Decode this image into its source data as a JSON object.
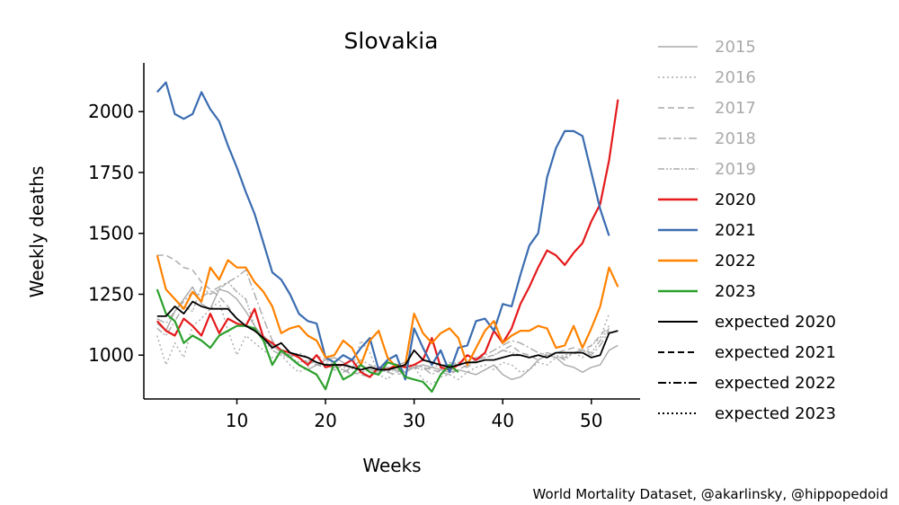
{
  "chart_data": {
    "type": "line",
    "title": "Slovakia",
    "xlabel": "Weeks",
    "ylabel": "Weekly deaths",
    "xlim": [
      -0.5,
      55.5
    ],
    "ylim": [
      820,
      2200
    ],
    "xticks": [
      10,
      20,
      30,
      40,
      50
    ],
    "yticks": [
      1000,
      1250,
      1500,
      1750,
      2000
    ],
    "grid": false,
    "legend_position": "right",
    "credit": "World Mortality Dataset, @akarlinsky, @hippopedoid",
    "series": [
      {
        "name": "2015",
        "color": "#aaaaaa",
        "dash": "solid",
        "width": 1.4,
        "start": 1,
        "values": [
          1130,
          1100,
          1180,
          1230,
          1280,
          1210,
          1190,
          1270,
          1260,
          1230,
          1180,
          1120,
          1070,
          1040,
          1010,
          990,
          960,
          940,
          960,
          980,
          990,
          970,
          950,
          960,
          940,
          930,
          950,
          940,
          930,
          950,
          960,
          950,
          940,
          930,
          940,
          930,
          920,
          940,
          960,
          920,
          900,
          910,
          940,
          980,
          1000,
          990,
          960,
          950,
          930,
          950,
          960,
          1020,
          1040
        ]
      },
      {
        "name": "2016",
        "color": "#aaaaaa",
        "dash": "dotted",
        "width": 1.4,
        "start": 1,
        "values": [
          1080,
          960,
          1050,
          990,
          1120,
          1150,
          1190,
          1220,
          1100,
          1000,
          1080,
          1050,
          1020,
          990,
          1000,
          960,
          930,
          950,
          1000,
          980,
          960,
          950,
          940,
          1060,
          1010,
          920,
          900,
          940,
          930,
          950,
          900,
          880,
          910,
          920,
          900,
          930,
          950,
          960,
          940,
          970,
          960,
          930,
          940,
          970,
          960,
          990,
          1000,
          1010,
          990,
          1040,
          1070,
          1170
        ]
      },
      {
        "name": "2017",
        "color": "#aaaaaa",
        "dash": "dashed",
        "width": 1.4,
        "start": 1,
        "values": [
          1410,
          1410,
          1390,
          1360,
          1350,
          1300,
          1270,
          1240,
          1200,
          1150,
          1120,
          1100,
          1080,
          1040,
          1020,
          1000,
          990,
          970,
          960,
          950,
          960,
          940,
          930,
          920,
          910,
          940,
          930,
          920,
          930,
          960,
          950,
          940,
          930,
          920,
          940,
          960,
          980,
          990,
          1000,
          1020,
          1040,
          1010,
          1000,
          980,
          1000,
          1010,
          1020,
          1030,
          1020,
          1040,
          1080,
          1120
        ]
      },
      {
        "name": "2018",
        "color": "#aaaaaa",
        "dash": "dashdot",
        "width": 1.4,
        "start": 1,
        "values": [
          1150,
          1130,
          1180,
          1220,
          1260,
          1240,
          1260,
          1280,
          1300,
          1320,
          1350,
          1250,
          1150,
          1060,
          1020,
          990,
          1010,
          990,
          960,
          970,
          940,
          930,
          950,
          980,
          960,
          940,
          950,
          930,
          940,
          960,
          950,
          920,
          940,
          970,
          960,
          950,
          980,
          1000,
          1020,
          1040,
          1060,
          1050,
          1030,
          1010,
          1000,
          990,
          990,
          1010,
          1020,
          1000,
          1040,
          1100
        ]
      },
      {
        "name": "2019",
        "color": "#aaaaaa",
        "dash": "dashdotdot",
        "width": 1.4,
        "start": 1,
        "values": [
          1110,
          1080,
          1140,
          1200,
          1180,
          1280,
          1250,
          1270,
          1300,
          1260,
          1230,
          1120,
          1060,
          1020,
          1000,
          990,
          970,
          980,
          960,
          960,
          950,
          940,
          920,
          930,
          940,
          950,
          930,
          960,
          970,
          950,
          940,
          950,
          960,
          960,
          970,
          980,
          990,
          990,
          1000,
          1020,
          1010,
          1000,
          990,
          1000,
          1010,
          1000,
          980,
          1010,
          1020,
          1010,
          1060,
          1110
        ]
      },
      {
        "name": "2020",
        "color": "#e41a1c",
        "dash": "solid",
        "width": 2.2,
        "start": 1,
        "values": [
          1140,
          1100,
          1080,
          1150,
          1120,
          1080,
          1170,
          1090,
          1150,
          1130,
          1120,
          1190,
          1070,
          1050,
          1020,
          1010,
          990,
          960,
          1000,
          950,
          960,
          960,
          980,
          930,
          910,
          950,
          940,
          960,
          950,
          960,
          980,
          1070,
          950,
          940,
          960,
          1000,
          980,
          1010,
          1100,
          1050,
          1110,
          1210,
          1280,
          1360,
          1430,
          1410,
          1370,
          1420,
          1460,
          1550,
          1620,
          1800,
          2050
        ]
      },
      {
        "name": "2021",
        "color": "#3a6cb0",
        "dash": "solid",
        "width": 2.2,
        "start": 1,
        "values": [
          2080,
          2120,
          1990,
          1970,
          1990,
          2080,
          2010,
          1960,
          1860,
          1770,
          1670,
          1580,
          1460,
          1340,
          1310,
          1250,
          1170,
          1140,
          1130,
          990,
          970,
          1000,
          980,
          1030,
          1070,
          940,
          980,
          1000,
          900,
          1110,
          1030,
          960,
          1020,
          930,
          1030,
          1040,
          1140,
          1150,
          1100,
          1210,
          1200,
          1330,
          1450,
          1500,
          1730,
          1850,
          1920,
          1920,
          1900,
          1750,
          1600,
          1490
        ]
      },
      {
        "name": "2022",
        "color": "#ff8200",
        "dash": "solid",
        "width": 2.2,
        "start": 1,
        "values": [
          1410,
          1270,
          1230,
          1190,
          1260,
          1220,
          1360,
          1310,
          1390,
          1360,
          1360,
          1300,
          1260,
          1200,
          1090,
          1110,
          1120,
          1080,
          1060,
          990,
          1000,
          1060,
          1030,
          960,
          1060,
          1100,
          990,
          950,
          960,
          1170,
          1090,
          1050,
          1090,
          1110,
          1070,
          960,
          1030,
          1100,
          1140,
          1050,
          1080,
          1100,
          1100,
          1120,
          1110,
          1030,
          1040,
          1120,
          1030,
          1110,
          1200,
          1360,
          1280
        ]
      },
      {
        "name": "2023",
        "color": "#2ca02c",
        "dash": "solid",
        "width": 2.2,
        "start": 1,
        "values": [
          1270,
          1170,
          1140,
          1050,
          1080,
          1060,
          1030,
          1080,
          1100,
          1120,
          1120,
          1110,
          1060,
          960,
          1020,
          990,
          960,
          940,
          920,
          860,
          970,
          900,
          920,
          960,
          930,
          920,
          970,
          960,
          910,
          900,
          890,
          850,
          920,
          960,
          930
        ]
      },
      {
        "name": "expected 2020",
        "color": "#000000",
        "dash": "solid",
        "width": 1.8,
        "start": 1,
        "values": [
          1160,
          1160,
          1200,
          1170,
          1220,
          1200,
          1190,
          1190,
          1190,
          1150,
          1120,
          1100,
          1070,
          1030,
          1050,
          1010,
          1000,
          990,
          970,
          960,
          960,
          960,
          950,
          940,
          950,
          940,
          940,
          950,
          960,
          1020,
          980,
          970,
          960,
          950,
          960,
          970,
          970,
          980,
          980,
          990,
          1000,
          1000,
          990,
          1000,
          990,
          1010,
          1010,
          1010,
          1010,
          990,
          1000,
          1090,
          1100
        ]
      },
      {
        "name": "expected 2021",
        "color": "#000000",
        "dash": "dashed",
        "width": 1.8,
        "start": 1,
        "values": []
      },
      {
        "name": "expected 2022",
        "color": "#000000",
        "dash": "dashdot",
        "width": 1.8,
        "start": 1,
        "values": []
      },
      {
        "name": "expected 2023",
        "color": "#000000",
        "dash": "dotted",
        "width": 1.8,
        "start": 1,
        "values": []
      }
    ]
  }
}
